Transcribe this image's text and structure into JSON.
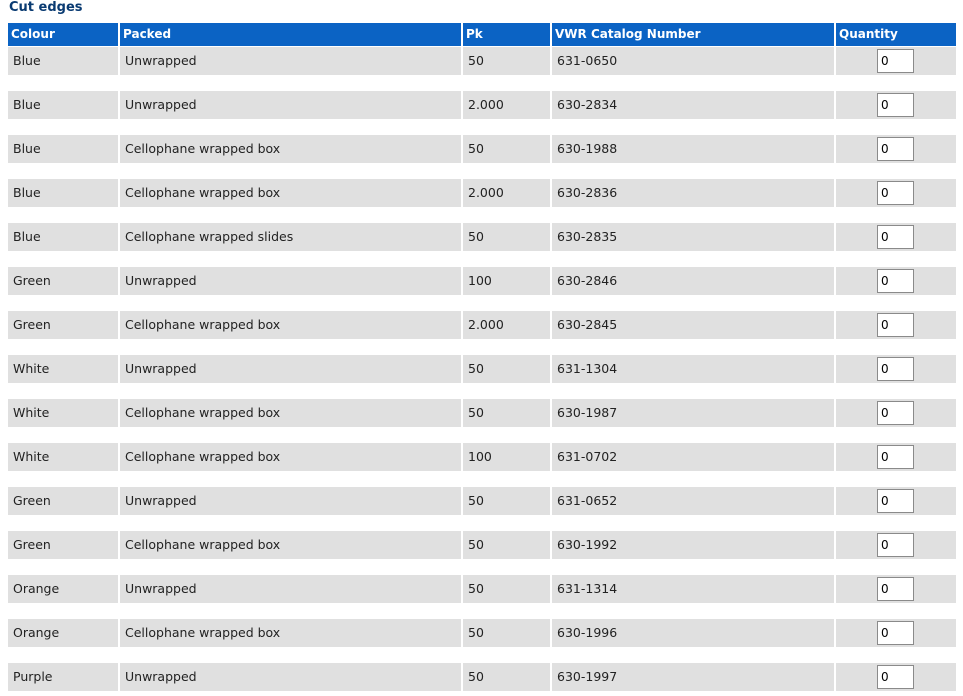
{
  "section_title": "Cut edges",
  "table": {
    "headers": [
      "Colour",
      "Packed",
      "Pk",
      "VWR Catalog Number",
      "Quantity"
    ],
    "rows": [
      {
        "colour": "Blue",
        "packed": "Unwrapped",
        "pk": "50",
        "catalog": "631-0650",
        "quantity": "0"
      },
      {
        "colour": "Blue",
        "packed": "Unwrapped",
        "pk": "2.000",
        "catalog": "630-2834",
        "quantity": "0"
      },
      {
        "colour": "Blue",
        "packed": "Cellophane wrapped box",
        "pk": "50",
        "catalog": "630-1988",
        "quantity": "0"
      },
      {
        "colour": "Blue",
        "packed": "Cellophane wrapped box",
        "pk": "2.000",
        "catalog": "630-2836",
        "quantity": "0"
      },
      {
        "colour": "Blue",
        "packed": "Cellophane wrapped slides",
        "pk": "50",
        "catalog": "630-2835",
        "quantity": "0"
      },
      {
        "colour": "Green",
        "packed": "Unwrapped",
        "pk": "100",
        "catalog": "630-2846",
        "quantity": "0"
      },
      {
        "colour": "Green",
        "packed": "Cellophane wrapped box",
        "pk": "2.000",
        "catalog": "630-2845",
        "quantity": "0"
      },
      {
        "colour": "White",
        "packed": "Unwrapped",
        "pk": "50",
        "catalog": "631-1304",
        "quantity": "0"
      },
      {
        "colour": "White",
        "packed": "Cellophane wrapped box",
        "pk": "50",
        "catalog": "630-1987",
        "quantity": "0"
      },
      {
        "colour": "White",
        "packed": "Cellophane wrapped box",
        "pk": "100",
        "catalog": "631-0702",
        "quantity": "0"
      },
      {
        "colour": "Green",
        "packed": "Unwrapped",
        "pk": "50",
        "catalog": "631-0652",
        "quantity": "0"
      },
      {
        "colour": "Green",
        "packed": "Cellophane wrapped box",
        "pk": "50",
        "catalog": "630-1992",
        "quantity": "0"
      },
      {
        "colour": "Orange",
        "packed": "Unwrapped",
        "pk": "50",
        "catalog": "631-1314",
        "quantity": "0"
      },
      {
        "colour": "Orange",
        "packed": "Cellophane wrapped box",
        "pk": "50",
        "catalog": "630-1996",
        "quantity": "0"
      },
      {
        "colour": "Purple",
        "packed": "Unwrapped",
        "pk": "50",
        "catalog": "630-1997",
        "quantity": "0"
      }
    ]
  },
  "colors": {
    "header_bg": "#0b63c4",
    "row_bg": "#e0e0e0",
    "title_text": "#0a3b72"
  }
}
